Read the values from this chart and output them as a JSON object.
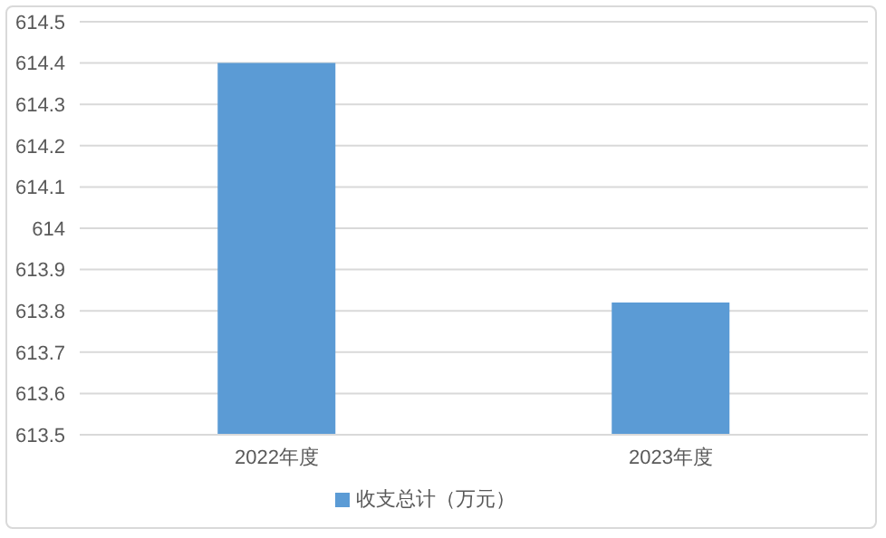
{
  "chart_data": {
    "type": "bar",
    "categories": [
      "2022年度",
      "2023年度"
    ],
    "series": [
      {
        "name": "收支总计（万元）",
        "color": "#5b9bd5",
        "values": [
          614.4,
          613.82
        ]
      }
    ],
    "ylim": [
      613.5,
      614.5
    ],
    "yticks": [
      613.5,
      613.6,
      613.7,
      613.8,
      613.9,
      614,
      614.1,
      614.2,
      614.3,
      614.4,
      614.5
    ],
    "grid": "y",
    "legend": "bottom"
  }
}
